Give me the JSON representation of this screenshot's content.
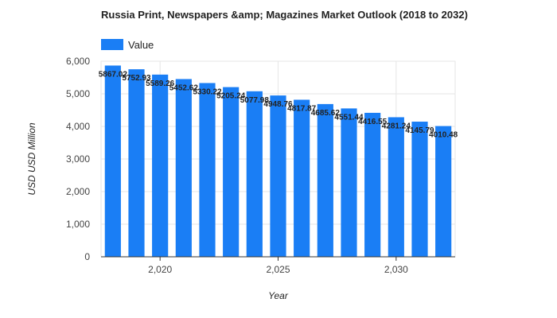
{
  "chart_data": {
    "type": "bar",
    "title": "Russia Print, Newspapers &amp; Magazines Market Outlook (2018 to 2032)",
    "xlabel": "Year",
    "ylabel": "USD USD Million",
    "legend": {
      "entries": [
        "Value"
      ],
      "position": "top-left"
    },
    "series": [
      {
        "name": "Value",
        "color": "#1a7ef5",
        "x": [
          2018,
          2019,
          2020,
          2021,
          2022,
          2023,
          2024,
          2025,
          2026,
          2027,
          2028,
          2029,
          2030,
          2031,
          2032
        ],
        "values": [
          5867.02,
          5752.93,
          5589.26,
          5452.62,
          5330.22,
          5205.24,
          5077.98,
          4948.76,
          4817.87,
          4685.62,
          4551.44,
          4416.55,
          4281.24,
          4145.79,
          4010.48
        ],
        "labels": [
          "5867.02",
          "5752.93",
          "5589.26",
          "5452.62",
          "5330.22",
          "5205.24",
          "5077.98",
          "4948.76",
          "4817.87",
          "4685.62",
          "4551.44",
          "4416.55",
          "4281.24",
          "4145.79",
          "4010.48"
        ]
      }
    ],
    "ylim": [
      0,
      6000
    ],
    "yticks": [
      0,
      1000,
      2000,
      3000,
      4000,
      5000,
      6000
    ],
    "ytick_labels": [
      "0",
      "1,000",
      "2,000",
      "3,000",
      "4,000",
      "5,000",
      "6,000"
    ],
    "xticks": [
      2020,
      2025,
      2030
    ],
    "xtick_labels": [
      "2,020",
      "2,025",
      "2,030"
    ],
    "grid": true,
    "gridline_color": "#e6e6e6"
  }
}
